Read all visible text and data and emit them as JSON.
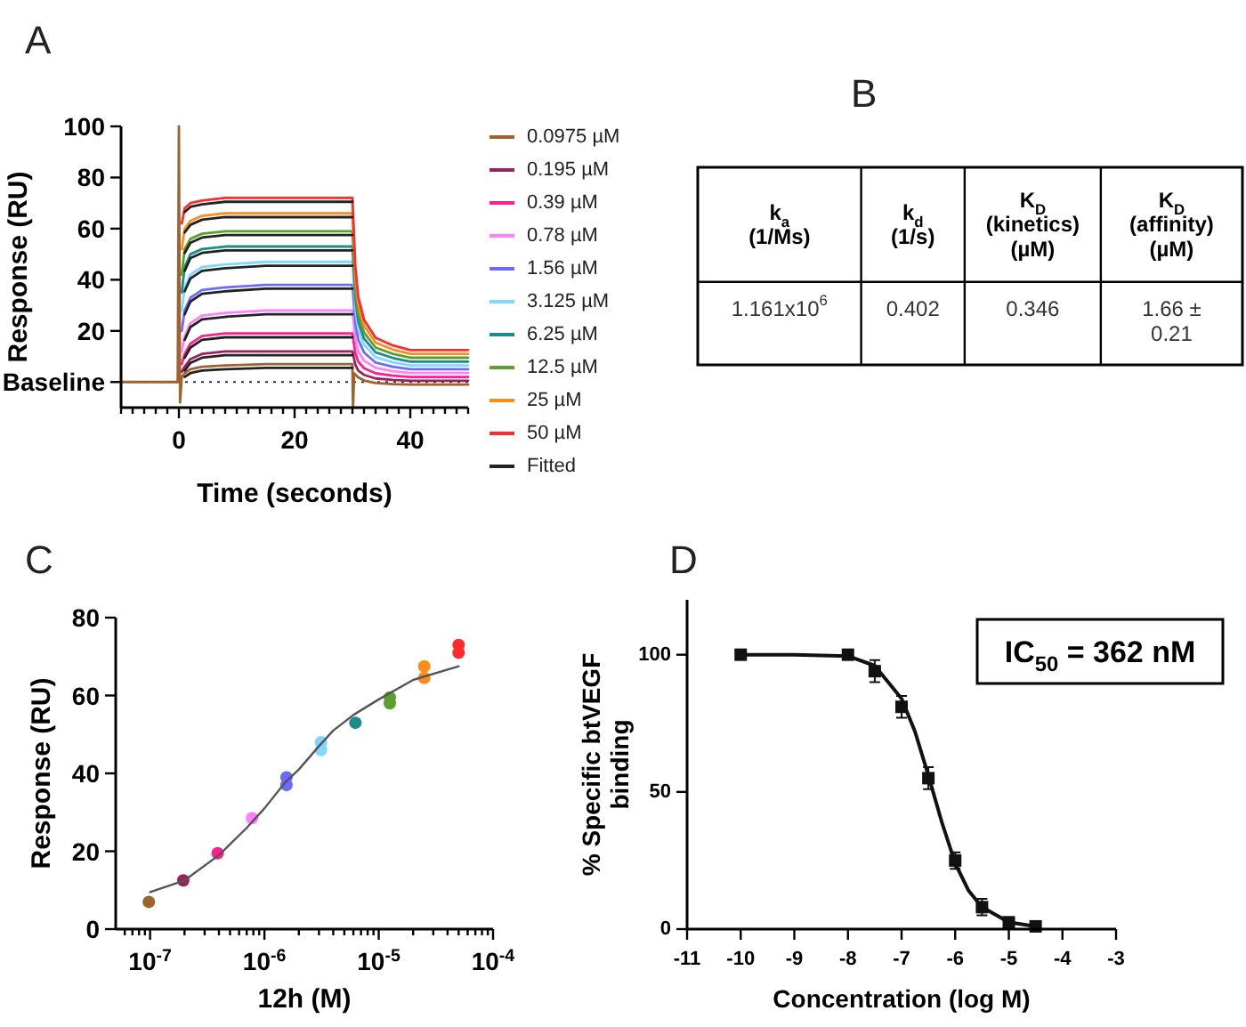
{
  "chart_data": [
    {
      "type": "line",
      "title": "A",
      "xlabel": "Time (seconds)",
      "ylabel": "Response (RU)",
      "xlim": [
        -10,
        50
      ],
      "ylim": [
        -10,
        100
      ],
      "xticks": [
        {
          "value": -10,
          "label": null
        },
        {
          "value": -8,
          "label": null
        },
        {
          "value": -6,
          "label": null
        },
        {
          "value": -4,
          "label": null
        },
        {
          "value": -2,
          "label": null
        },
        0,
        {
          "value": 2,
          "label": null
        },
        {
          "value": 4,
          "label": null
        },
        {
          "value": 6,
          "label": null
        },
        {
          "value": 8,
          "label": null
        },
        {
          "value": 10,
          "label": null
        },
        {
          "value": 12,
          "label": null
        },
        {
          "value": 14,
          "label": null
        },
        {
          "value": 16,
          "label": null
        },
        {
          "value": 18,
          "label": null
        },
        20,
        {
          "value": 22,
          "label": null
        },
        {
          "value": 24,
          "label": null
        },
        {
          "value": 26,
          "label": null
        },
        {
          "value": 28,
          "label": null
        },
        {
          "value": 30,
          "label": null
        },
        {
          "value": 32,
          "label": null
        },
        {
          "value": 34,
          "label": null
        },
        {
          "value": 36,
          "label": null
        },
        {
          "value": 38,
          "label": null
        },
        40,
        {
          "value": 42,
          "label": null
        },
        {
          "value": 44,
          "label": null
        },
        {
          "value": 46,
          "label": null
        },
        {
          "value": 48,
          "label": null
        },
        {
          "value": 50,
          "label": null
        }
      ],
      "yticks": [
        {
          "value": 0,
          "label": "Baseline"
        },
        20,
        40,
        60,
        80,
        100
      ],
      "legend": "right",
      "line_style": "solid",
      "ref_lines": [
        {
          "axis": "y",
          "value": 0,
          "line_style": "dotted",
          "color": "#333333"
        }
      ],
      "x": [
        0.5,
        1,
        2,
        4,
        8,
        15,
        30,
        30.5,
        31,
        32,
        34,
        37,
        40,
        45,
        50
      ],
      "series": [
        {
          "name": "0.0975 µM",
          "color": "#a0622d",
          "x": [
            -10,
            -0.2,
            0,
            0.2,
            0.5,
            1,
            2,
            4,
            8,
            15,
            30,
            30.1,
            30.3,
            31,
            32,
            34,
            37,
            40,
            45,
            50
          ],
          "values": [
            0,
            0,
            100,
            -8,
            2,
            3.5,
            5,
            6,
            6.5,
            7,
            7,
            -10,
            3.4,
            1.8,
            0.6,
            -0.4,
            -0.8,
            -1,
            -1,
            -1
          ]
        },
        {
          "name": "0.195 µM",
          "color": "#9e1f5e",
          "values": [
            4,
            6,
            9,
            11,
            12,
            12,
            12,
            6.8,
            4.5,
            2.8,
            1.4,
            0.8,
            0.5,
            0.5,
            0.5
          ]
        },
        {
          "name": "0.39 µM",
          "color": "#ff1e8c",
          "values": [
            7,
            11,
            15,
            18,
            19,
            19,
            19,
            11.4,
            8,
            5.4,
            3.4,
            2.5,
            2,
            2,
            2
          ]
        },
        {
          "name": "0.78 µM",
          "color": "#ff80ff",
          "values": [
            12,
            18,
            23,
            26,
            27,
            28,
            28,
            17,
            12,
            8.4,
            5.5,
            4.2,
            3.5,
            3.5,
            3.5
          ]
        },
        {
          "name": "1.56 µM",
          "color": "#6b6bff",
          "values": [
            20,
            28,
            33,
            36,
            37,
            38,
            38,
            23,
            16.6,
            11.6,
            7.6,
            6,
            5,
            5,
            5
          ]
        },
        {
          "name": "3.125 µM",
          "color": "#7fd8ff",
          "values": [
            28,
            37,
            42,
            45,
            46,
            47,
            47,
            28.8,
            20.7,
            14.6,
            9.7,
            7.7,
            6.5,
            6.5,
            6.5
          ]
        },
        {
          "name": "6.25 µM",
          "color": "#1f8a8a",
          "values": [
            35,
            45,
            50,
            52,
            53,
            53,
            53,
            32.8,
            23.8,
            17,
            11.6,
            9.4,
            8,
            8,
            8
          ]
        },
        {
          "name": "12.5 µM",
          "color": "#5aa02c",
          "values": [
            42,
            52,
            56,
            58,
            59,
            59,
            59,
            36.7,
            26.8,
            19.4,
            13.5,
            11,
            9.5,
            9.5,
            9.5
          ]
        },
        {
          "name": "25 µM",
          "color": "#ff8c1a",
          "values": [
            52,
            60,
            63,
            65,
            66,
            66,
            66,
            41.3,
            30.3,
            22,
            15.4,
            12.7,
            11,
            11,
            11
          ]
        },
        {
          "name": "50 µM",
          "color": "#ff2a2a",
          "values": [
            62,
            68,
            70,
            71,
            72,
            72,
            72,
            45.2,
            33.3,
            24.4,
            17.3,
            14.3,
            12.5,
            12.5,
            12.5
          ]
        },
        {
          "name": "Fitted",
          "color": "#222222",
          "x": [
            1,
            2,
            4,
            8,
            15,
            30,
            null,
            1,
            2,
            4,
            8,
            15,
            30,
            null,
            1,
            2,
            4,
            8,
            15,
            30,
            null,
            1,
            2,
            4,
            8,
            15,
            30,
            null,
            1,
            2,
            4,
            8,
            15,
            30,
            null,
            1,
            2,
            4,
            8,
            15,
            30,
            null,
            1,
            2,
            4,
            8,
            15,
            30,
            null,
            1,
            2,
            4,
            8,
            15,
            30,
            null,
            1,
            2,
            4,
            8,
            15,
            30,
            null,
            1,
            2,
            4,
            8,
            15,
            30
          ],
          "values": [
            2,
            3.5,
            4.5,
            5,
            5.5,
            5.5,
            null,
            4.5,
            7.5,
            9.5,
            10.5,
            10.5,
            10.5,
            null,
            9.5,
            13.5,
            16.5,
            17.5,
            17.5,
            17.5,
            null,
            16.5,
            21.5,
            24.5,
            25.5,
            26.5,
            26.5,
            null,
            26.5,
            31.5,
            34.5,
            35.5,
            36.5,
            36.5,
            null,
            35.5,
            40.5,
            43.5,
            44.5,
            45.5,
            45.5,
            null,
            43.5,
            48.5,
            50.5,
            51.5,
            51.5,
            51.5,
            null,
            50.5,
            54.5,
            56.5,
            57.5,
            57.5,
            57.5,
            null,
            58.5,
            61.5,
            63.5,
            64.5,
            64.5,
            64.5,
            null,
            66.5,
            68.5,
            69.5,
            70.5,
            70.5,
            70.5
          ]
        }
      ]
    },
    {
      "type": "other",
      "title": "B",
      "categories": [
        "k$_{a}$\n(1/Ms)",
        "k$_{d}$\n(1/s)",
        "K$_{D}$\n(kinetics)\n(µM)",
        "K$_{D}$\n(affinity)\n(µM)"
      ],
      "annotations": [
        "1.161x10$^{6}$",
        "0.402",
        "0.346",
        "1.66 ±\n0.21"
      ]
    },
    {
      "type": "scatter",
      "title": "C",
      "xlabel": "12h (M)",
      "ylabel": "Response (RU)",
      "log": "x",
      "xlim": [
        5e-08,
        0.0001
      ],
      "ylim": [
        0,
        80
      ],
      "xticks": [
        {
          "value": 6e-08,
          "label": null
        },
        {
          "value": 7e-08,
          "label": null
        },
        {
          "value": 8e-08,
          "label": null
        },
        {
          "value": 9e-08,
          "label": null
        },
        {
          "value": 1e-07,
          "label": "10$^{-7}$"
        },
        {
          "value": 2e-07,
          "label": null
        },
        {
          "value": 3e-07,
          "label": null
        },
        {
          "value": 4e-07,
          "label": null
        },
        {
          "value": 5e-07,
          "label": null
        },
        {
          "value": 6e-07,
          "label": null
        },
        {
          "value": 7e-07,
          "label": null
        },
        {
          "value": 8e-07,
          "label": null
        },
        {
          "value": 9e-07,
          "label": null
        },
        {
          "value": 1e-06,
          "label": "10$^{-6}$"
        },
        {
          "value": 2e-06,
          "label": null
        },
        {
          "value": 3e-06,
          "label": null
        },
        {
          "value": 4e-06,
          "label": null
        },
        {
          "value": 5e-06,
          "label": null
        },
        {
          "value": 6e-06,
          "label": null
        },
        {
          "value": 7e-06,
          "label": null
        },
        {
          "value": 8e-06,
          "label": null
        },
        {
          "value": 9e-06,
          "label": null
        },
        {
          "value": 1e-05,
          "label": "10$^{-5}$"
        },
        {
          "value": 2e-05,
          "label": null
        },
        {
          "value": 3e-05,
          "label": null
        },
        {
          "value": 4e-05,
          "label": null
        },
        {
          "value": 5e-05,
          "label": null
        },
        {
          "value": 6e-05,
          "label": null
        },
        {
          "value": 7e-05,
          "label": null
        },
        {
          "value": 8e-05,
          "label": null
        },
        {
          "value": 9e-05,
          "label": null
        },
        {
          "value": 0.0001,
          "label": "10$^{-4}$"
        }
      ],
      "yticks": [
        0,
        20,
        40,
        60,
        80
      ],
      "series": [
        {
          "type": "scatter",
          "marker": "circle",
          "x": [
            9.75e-08,
            1.95e-07,
            3.9e-07,
            7.8e-07,
            1.56e-06,
            1.56e-06,
            3.125e-06,
            3.125e-06,
            6.25e-06,
            1.25e-05,
            1.25e-05,
            2.5e-05,
            2.5e-05,
            5e-05,
            5e-05
          ],
          "values": [
            7,
            12.5,
            19.5,
            28.5,
            37,
            39,
            46,
            48,
            53,
            58,
            59.5,
            64.5,
            67.5,
            71,
            73
          ],
          "colors": [
            "#a0622d",
            "#9e1f5e",
            "#ff1e8c",
            "#ff80ff",
            "#6b6bff",
            "#6b6bff",
            "#7fd8ff",
            "#7fd8ff",
            "#1f8a8a",
            "#5aa02c",
            "#5aa02c",
            "#ff8c1a",
            "#ff8c1a",
            "#ff2a2a",
            "#ff2a2a"
          ]
        },
        {
          "type": "line",
          "color": "#555555",
          "x": [
            1e-07,
            2e-07,
            4e-07,
            7e-07,
            1e-06,
            1.5e-06,
            2e-06,
            3e-06,
            4e-06,
            6e-06,
            1e-05,
            2e-05,
            5e-05
          ],
          "values": [
            9.5,
            12.5,
            19,
            26,
            31,
            37.5,
            41,
            47,
            51,
            55,
            59,
            64,
            67.5
          ]
        }
      ]
    },
    {
      "type": "scatter",
      "title": "D",
      "xlabel": "Concentration (log M)",
      "ylabel": "% Specific btVEGF\nbinding",
      "xlim": [
        -11,
        -3
      ],
      "ylim": [
        0,
        120
      ],
      "xticks": [
        -11,
        -10,
        -9,
        -8,
        -7,
        -6,
        -5,
        -4,
        -3
      ],
      "yticks": [
        0,
        50,
        100
      ],
      "annotations": [
        "IC$_{50}$ = 362 nM"
      ],
      "series": [
        {
          "type": "scatter",
          "marker": "square",
          "color": "#111111",
          "x": [
            -10,
            -8,
            -7.5,
            -7,
            -6.5,
            -6,
            -5.5,
            -5,
            -4.5
          ],
          "values": [
            100,
            100,
            94,
            81,
            55,
            25,
            8,
            2.5,
            1
          ],
          "errors": [
            null,
            null,
            4,
            4,
            4,
            3,
            3,
            null,
            null
          ]
        },
        {
          "type": "line",
          "color": "#111111",
          "x": [
            -10,
            -9,
            -8,
            -7.5,
            -7,
            -6.75,
            -6.5,
            -6.25,
            -6,
            -5.75,
            -5.5,
            -5,
            -4.5
          ],
          "values": [
            100,
            100,
            99.5,
            96,
            84,
            72,
            56,
            39,
            24,
            14,
            8,
            2.5,
            1
          ]
        }
      ]
    }
  ]
}
